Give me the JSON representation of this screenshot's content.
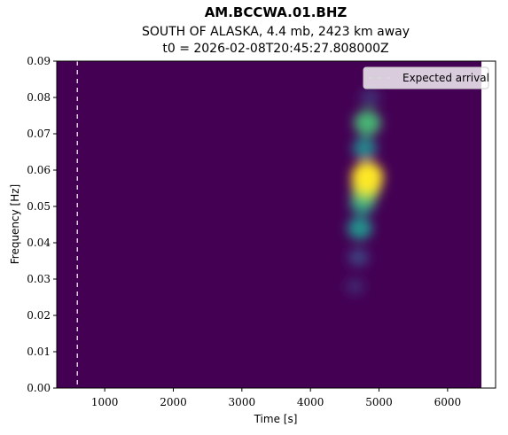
{
  "chart_data": {
    "type": "heatmap",
    "title": "AM.BCCWA.01.BHZ",
    "subtitle": "SOUTH OF ALASKA, 4.4 mb, 2423 km away",
    "subtitle2": "t0 = 2026-02-08T20:45:27.808000Z",
    "xlabel": "Time [s]",
    "ylabel": "Frequency [Hz]",
    "xlim": [
      300,
      6700
    ],
    "ylim": [
      0,
      0.09
    ],
    "x_ticks": [
      1000,
      2000,
      3000,
      4000,
      5000,
      6000
    ],
    "x_tick_labels": [
      "1000",
      "2000",
      "3000",
      "4000",
      "5000",
      "6000"
    ],
    "y_ticks": [
      0,
      0.01,
      0.02,
      0.03,
      0.04,
      0.05,
      0.06,
      0.07,
      0.08,
      0.09
    ],
    "y_tick_labels": [
      "0.00",
      "0.01",
      "0.02",
      "0.03",
      "0.04",
      "0.05",
      "0.06",
      "0.07",
      "0.08",
      "0.09"
    ],
    "colormap": "viridis",
    "background_color": "#440154",
    "expected_arrival_time": 600,
    "legend": {
      "label": "Expected arrival",
      "placement": "top-right"
    },
    "energy_peaks": [
      {
        "time": 4830,
        "freq": 0.058,
        "intensity": 1.0
      },
      {
        "time": 4810,
        "freq": 0.055,
        "intensity": 0.8
      },
      {
        "time": 4830,
        "freq": 0.073,
        "intensity": 0.65
      },
      {
        "time": 4760,
        "freq": 0.051,
        "intensity": 0.55
      },
      {
        "time": 4720,
        "freq": 0.044,
        "intensity": 0.5
      },
      {
        "time": 4790,
        "freq": 0.066,
        "intensity": 0.45
      },
      {
        "time": 4700,
        "freq": 0.036,
        "intensity": 0.2
      },
      {
        "time": 4650,
        "freq": 0.028,
        "intensity": 0.12
      },
      {
        "time": 4870,
        "freq": 0.08,
        "intensity": 0.15
      }
    ]
  }
}
